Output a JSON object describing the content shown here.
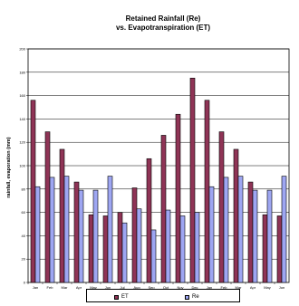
{
  "chart_data": {
    "type": "bar",
    "title": "Retained Rainfall (Re)\nvs. Evapotranspiration (ET)",
    "xlabel": "",
    "ylabel": "rainfall, evaporation (mm)",
    "ylim": [
      0,
      200
    ],
    "yticks": [
      0,
      20,
      40,
      60,
      80,
      100,
      120,
      140,
      160,
      180,
      200
    ],
    "grid": true,
    "legend_position": "bottom",
    "categories": [
      "Jan",
      "Feb",
      "Mar",
      "Apr",
      "May",
      "Jun",
      "Jul",
      "Aug",
      "Sep",
      "Oct",
      "Nov",
      "Dec",
      "Jan",
      "Feb",
      "Mar",
      "Apr",
      "May",
      "Jun"
    ],
    "series": [
      {
        "name": "ET",
        "color": "#8f3456",
        "values": [
          156,
          129,
          114,
          86,
          58,
          57,
          60,
          81,
          106,
          126,
          144,
          175,
          156,
          129,
          114,
          86,
          58,
          57
        ]
      },
      {
        "name": "Re",
        "color": "#9ea6f2",
        "values": [
          82,
          90,
          91,
          79,
          79,
          91,
          51,
          63,
          45,
          62,
          57,
          60,
          82,
          90,
          91,
          79,
          79,
          91
        ]
      }
    ]
  }
}
